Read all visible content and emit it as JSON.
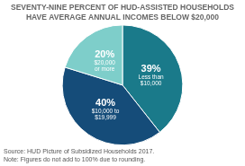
{
  "chart_data": {
    "type": "pie",
    "title": "SEVENTY-NINE PERCENT OF HUD-ASSISTED HOUSEHOLDS\nHAVE AVERAGE ANNUAL INCOMES BELOW $20,000",
    "categories": [
      "Less than\n$10,000",
      "$10,000 to\n$19,999",
      "$20,000\nor more"
    ],
    "values": [
      39,
      40,
      20
    ],
    "value_labels": [
      "39%",
      "40%",
      "20%"
    ],
    "colors": [
      "#1a7a8a",
      "#154c79",
      "#7ececa"
    ],
    "data_labels": true,
    "annotations": [
      "Source: HUD Picture of Subsidized Households 2017.",
      "Note: Figures do not add to 100% due to rounding."
    ]
  }
}
